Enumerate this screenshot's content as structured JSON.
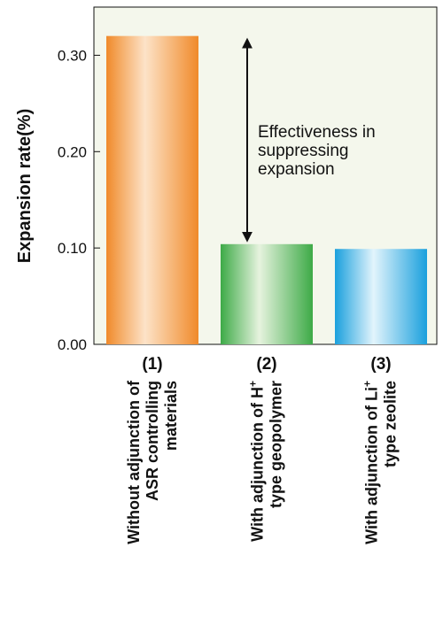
{
  "chart_data": {
    "type": "bar",
    "ylabel": "Expansion rate(%)",
    "ylim": [
      0,
      0.35
    ],
    "yticks": [
      "0.00",
      "0.10",
      "0.20",
      "0.30"
    ],
    "grid": false,
    "categories": [
      {
        "number": "(1)",
        "line1": "Without adjunction of",
        "line2": "ASR controlling",
        "line3": "materials",
        "sup": ""
      },
      {
        "number": "(2)",
        "line1": "With adjunction of H",
        "line2": "type geopolymer",
        "line3": "",
        "sup": "+"
      },
      {
        "number": "(3)",
        "line1": "With adjunction of Li",
        "line2": "type zeolite",
        "line3": "",
        "sup": "+"
      }
    ],
    "values": [
      0.32,
      0.104,
      0.099
    ],
    "bar_colors": [
      "#f08a2a",
      "#3daa47",
      "#1aa0dd"
    ],
    "background_color": "#f4f7ec",
    "annotation": {
      "lines": [
        "Effectiveness in",
        "suppressing",
        "expansion"
      ],
      "from_value": 0.32,
      "to_value": 0.104
    }
  }
}
